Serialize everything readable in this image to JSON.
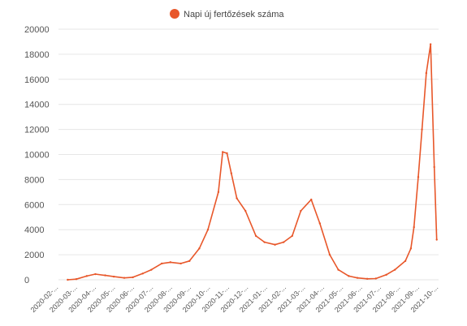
{
  "chart_data": {
    "type": "line",
    "color": "#E8572A",
    "legend": {
      "label": "Napi új fertőzések száma",
      "position": "top-center"
    },
    "ylim": [
      0,
      20000
    ],
    "yticks": [
      0,
      2000,
      4000,
      6000,
      8000,
      10000,
      12000,
      14000,
      16000,
      18000,
      20000
    ],
    "grid": true,
    "x_tick_labels": [
      "2020-02-...",
      "2020-03-...",
      "2020-04-...",
      "2020-05-...",
      "2020-06-...",
      "2020-07-...",
      "2020-08-...",
      "2020-09-...",
      "2020-10-...",
      "2020-11-...",
      "2020-12-...",
      "2021-01-...",
      "2021-02-...",
      "2021-03-...",
      "2021-04-...",
      "2021-05-...",
      "2021-06-...",
      "2021-07-...",
      "2021-08-...",
      "2021-09-...",
      "2021-10-..."
    ],
    "series": [
      {
        "name": "Napi új fertőzések száma",
        "x": [
          "2020-03-01",
          "2020-03-15",
          "2020-04-01",
          "2020-04-15",
          "2020-05-01",
          "2020-05-15",
          "2020-06-01",
          "2020-06-15",
          "2020-07-01",
          "2020-07-15",
          "2020-08-01",
          "2020-08-15",
          "2020-09-01",
          "2020-09-15",
          "2020-10-01",
          "2020-10-15",
          "2020-11-01",
          "2020-11-08",
          "2020-11-15",
          "2020-11-22",
          "2020-12-01",
          "2020-12-15",
          "2021-01-01",
          "2021-01-15",
          "2021-02-01",
          "2021-02-15",
          "2021-03-01",
          "2021-03-15",
          "2021-04-01",
          "2021-04-15",
          "2021-05-01",
          "2021-05-15",
          "2021-06-01",
          "2021-06-15",
          "2021-07-01",
          "2021-07-15",
          "2021-08-01",
          "2021-08-15",
          "2021-09-01",
          "2021-09-10",
          "2021-09-15",
          "2021-09-22",
          "2021-09-28",
          "2021-10-05",
          "2021-10-12",
          "2021-10-18",
          "2021-10-22"
        ],
        "values": [
          0,
          50,
          300,
          450,
          350,
          250,
          150,
          200,
          500,
          800,
          1300,
          1400,
          1300,
          1500,
          2500,
          4000,
          7000,
          10200,
          10100,
          8500,
          6500,
          5500,
          3500,
          3000,
          2800,
          3000,
          3500,
          5500,
          6400,
          4500,
          2000,
          800,
          300,
          150,
          80,
          100,
          400,
          800,
          1500,
          2500,
          4200,
          8200,
          12000,
          16500,
          18800,
          9000,
          3200
        ]
      }
    ]
  }
}
